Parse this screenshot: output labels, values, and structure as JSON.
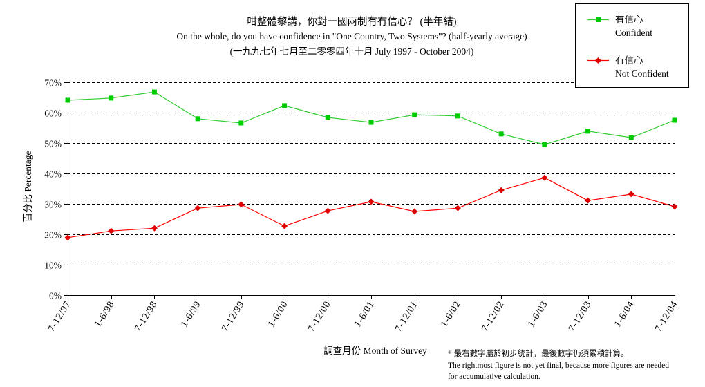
{
  "chart_data": {
    "type": "line",
    "title": "咁整體黎講，你對一國兩制有冇信心？ (半年結)",
    "subtitle": "On the whole, do you have confidence in \"One Country, Two Systems\"? (half-yearly average)",
    "date_range": "(一九九七年七月至二零零四年十月 July 1997 - October 2004)",
    "xlabel": "調查月份 Month of Survey",
    "ylabel": "百分比 Percentage",
    "ylim": [
      0,
      70
    ],
    "yticks": [
      0,
      10,
      20,
      30,
      40,
      50,
      60,
      70
    ],
    "ytick_labels": [
      "0%",
      "10%",
      "20%",
      "30%",
      "40%",
      "50%",
      "60%",
      "70%"
    ],
    "categories": [
      "7-12/97",
      "1-6/98",
      "7-12/98",
      "1-6/99",
      "7-12/99",
      "1-6/00",
      "7-12/00",
      "1-6/01",
      "7-12/01",
      "1-6/02",
      "7-12/02",
      "1-6/03",
      "7-12/03",
      "1-6/04",
      "7-12/04"
    ],
    "grid": true,
    "legend_position": "top-right",
    "series": [
      {
        "name": "Confident",
        "name_zh": "有信心",
        "color": "#33cc33",
        "marker_color": "#00cc00",
        "marker": "square",
        "values": [
          64.1,
          64.8,
          66.8,
          58.0,
          56.6,
          62.3,
          58.4,
          56.8,
          59.3,
          58.9,
          53.0,
          49.5,
          53.9,
          51.8,
          57.5
        ]
      },
      {
        "name": "Not Confident",
        "name_zh": "冇信心",
        "color": "#ff0000",
        "marker_color": "#e00000",
        "marker": "diamond",
        "values": [
          18.9,
          21.1,
          22.0,
          28.6,
          29.8,
          22.7,
          27.7,
          30.7,
          27.5,
          28.6,
          34.5,
          38.6,
          31.1,
          33.2,
          29.1
        ]
      }
    ]
  },
  "footnote": [
    "* 最右數字屬於初步統計，最後數字仍須累積計算。",
    "The rightmost figure is not yet final, because more figures are needed",
    "for accumulative calculation."
  ]
}
